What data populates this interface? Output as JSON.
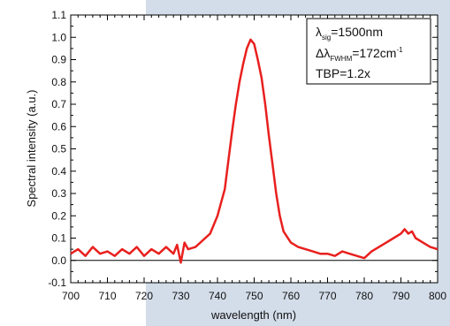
{
  "chart_data": {
    "type": "line",
    "xlabel": "wavelength (nm)",
    "ylabel": "Spectral intensity (a.u.)",
    "xlim": [
      700,
      800
    ],
    "ylim": [
      -0.1,
      1.1
    ],
    "xticks": [
      700,
      710,
      720,
      730,
      740,
      750,
      760,
      770,
      780,
      790,
      800
    ],
    "yticks": [
      "-0.1",
      "0.0",
      "0.1",
      "0.2",
      "0.3",
      "0.4",
      "0.5",
      "0.6",
      "0.7",
      "0.8",
      "0.9",
      "1.0",
      "1.1"
    ],
    "grid": false,
    "series": [
      {
        "color": "#e8201e",
        "x": [
          700,
          702,
          704,
          706,
          708,
          710,
          712,
          714,
          716,
          718,
          720,
          722,
          724,
          726,
          728,
          729,
          730,
          731,
          732,
          734,
          736,
          738,
          740,
          742,
          743,
          744,
          745,
          746,
          747,
          748,
          749,
          750,
          751,
          752,
          753,
          754,
          755,
          756,
          757,
          758,
          760,
          762,
          764,
          766,
          768,
          770,
          772,
          774,
          776,
          778,
          780,
          782,
          784,
          786,
          788,
          790,
          791,
          792,
          793,
          794,
          796,
          798,
          800
        ],
        "y": [
          0.03,
          0.05,
          0.02,
          0.06,
          0.03,
          0.04,
          0.02,
          0.05,
          0.03,
          0.06,
          0.02,
          0.05,
          0.03,
          0.06,
          0.03,
          0.07,
          -0.01,
          0.08,
          0.05,
          0.06,
          0.09,
          0.12,
          0.2,
          0.32,
          0.45,
          0.58,
          0.7,
          0.8,
          0.88,
          0.95,
          0.99,
          0.97,
          0.9,
          0.82,
          0.7,
          0.56,
          0.43,
          0.3,
          0.2,
          0.13,
          0.08,
          0.06,
          0.05,
          0.04,
          0.03,
          0.03,
          0.02,
          0.04,
          0.03,
          0.02,
          0.01,
          0.04,
          0.06,
          0.08,
          0.1,
          0.12,
          0.14,
          0.12,
          0.13,
          0.1,
          0.08,
          0.06,
          0.05
        ]
      }
    ],
    "legend": {
      "position": "top-right",
      "lambda_symbol": "λ",
      "lambda_sub": "sig",
      "lambda_value": "=1500nm",
      "delta_symbol": "Δλ",
      "delta_sub": "FWHM",
      "delta_value": "=172cm",
      "delta_sup": "-1",
      "tbp": "TBP=1.2x"
    }
  }
}
